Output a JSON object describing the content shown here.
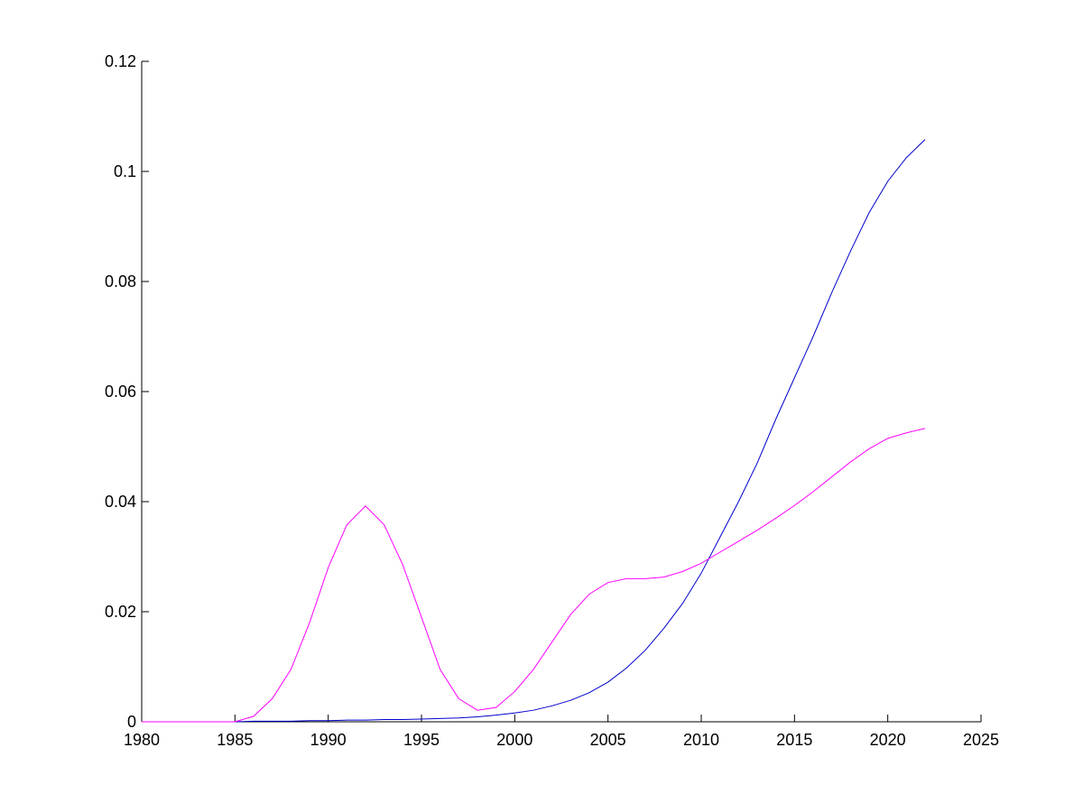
{
  "chart_data": {
    "type": "line",
    "title": "",
    "xlabel": "",
    "ylabel": "",
    "xlim": [
      1980,
      2025
    ],
    "ylim": [
      0,
      0.12
    ],
    "xticks": [
      1980,
      1985,
      1990,
      1995,
      2000,
      2005,
      2010,
      2015,
      2020,
      2025
    ],
    "yticks": [
      0,
      0.02,
      0.04,
      0.06,
      0.08,
      0.1,
      0.12
    ],
    "xtick_labels": [
      "1980",
      "1985",
      "1990",
      "1995",
      "2000",
      "2005",
      "2010",
      "2015",
      "2020",
      "2025"
    ],
    "ytick_labels": [
      "0",
      "0.02",
      "0.04",
      "0.06",
      "0.08",
      "0.1",
      "0.12"
    ],
    "grid": false,
    "legend": "none",
    "x": [
      1980,
      1981,
      1982,
      1983,
      1984,
      1985,
      1986,
      1987,
      1988,
      1989,
      1990,
      1991,
      1992,
      1993,
      1994,
      1995,
      1996,
      1997,
      1998,
      1999,
      2000,
      2001,
      2002,
      2003,
      2004,
      2005,
      2006,
      2007,
      2008,
      2009,
      2010,
      2011,
      2012,
      2013,
      2014,
      2015,
      2016,
      2017,
      2018,
      2019,
      2020,
      2021,
      2022
    ],
    "series": [
      {
        "color": "#0000cc",
        "values": [
          0,
          0,
          0,
          0,
          0,
          0,
          0.0001,
          0.0001,
          0.0001,
          0.0002,
          0.0002,
          0.0003,
          0.0003,
          0.0004,
          0.0004,
          0.0005,
          0.0006,
          0.0007,
          0.0009,
          0.0012,
          0.0016,
          0.0021,
          0.0029,
          0.0039,
          0.0053,
          0.0072,
          0.0098,
          0.013,
          0.017,
          0.0215,
          0.027,
          0.0335,
          0.04,
          0.047,
          0.055,
          0.0625,
          0.07,
          0.078,
          0.0855,
          0.0925,
          0.0982,
          0.1025,
          0.1058
        ]
      },
      {
        "color": "#ff00ff",
        "values": [
          0,
          0,
          0,
          0,
          0,
          0,
          0.001,
          0.0042,
          0.0095,
          0.018,
          0.028,
          0.0358,
          0.0392,
          0.0358,
          0.0285,
          0.019,
          0.0095,
          0.0042,
          0.0021,
          0.0026,
          0.0055,
          0.0095,
          0.0145,
          0.0195,
          0.0232,
          0.0253,
          0.026,
          0.026,
          0.0263,
          0.0273,
          0.0288,
          0.0308,
          0.0328,
          0.0348,
          0.037,
          0.0393,
          0.0418,
          0.0445,
          0.0472,
          0.0496,
          0.0515,
          0.0525,
          0.0533
        ]
      }
    ]
  }
}
